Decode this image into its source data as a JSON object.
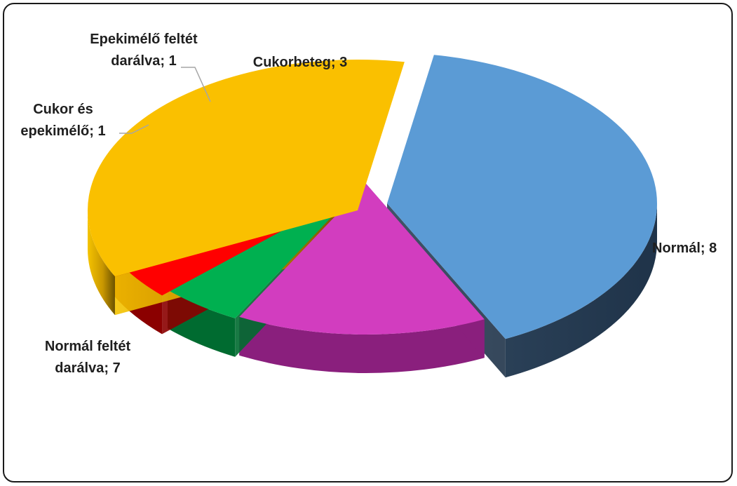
{
  "chart_data": {
    "type": "pie",
    "categories": [
      "Normál",
      "Cukorbeteg",
      "Epekimélő feltét darálva",
      "Cukor és epekimélő",
      "Normál feltét darálva"
    ],
    "values": [
      8,
      3,
      1,
      1,
      7
    ],
    "colors": [
      "#5b9bd5",
      "#d23dbf",
      "#00b050",
      "#ff0000",
      "#fac000"
    ],
    "labels": [
      [
        "Normál; 8"
      ],
      [
        "Cukorbeteg; 3"
      ],
      [
        "Epekimélő feltét",
        "darálva; 1"
      ],
      [
        "Cukor és",
        "epekimélő; 1"
      ],
      [
        "Normál feltét",
        "darálva; 7"
      ]
    ],
    "style": "3d-exploded"
  }
}
